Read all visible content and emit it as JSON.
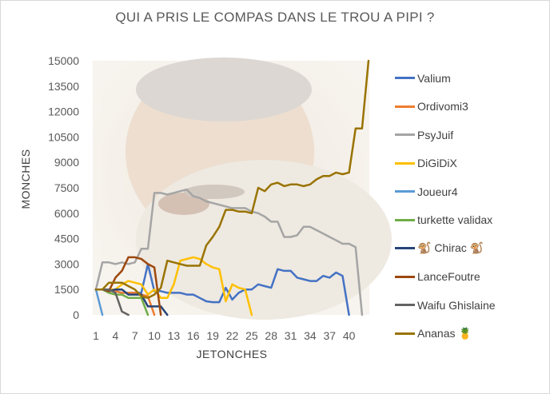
{
  "chart_data": {
    "type": "line",
    "title": "QUI A PRIS LE COMPAS DANS LE TROU A PIPI ?",
    "xlabel": "JETONCHES",
    "ylabel": "MONCHES",
    "ylim": [
      0,
      15000
    ],
    "yticks": [
      "0",
      "1500",
      "3000",
      "4500",
      "6000",
      "7500",
      "9000",
      "10500",
      "12000",
      "13500",
      "15000"
    ],
    "xlim": [
      1,
      43
    ],
    "xticks": [
      "1",
      "4",
      "7",
      "10",
      "13",
      "16",
      "19",
      "22",
      "25",
      "28",
      "31",
      "34",
      "37",
      "40"
    ],
    "grid": false,
    "legend_position": "right",
    "series": [
      {
        "name": "Valium",
        "color": "#4472c4",
        "x": [
          1,
          2,
          3,
          4,
          5,
          6,
          7,
          8,
          9,
          10,
          11,
          12,
          13,
          14,
          15,
          16,
          17,
          18,
          19,
          20,
          21,
          22,
          23,
          24,
          25,
          26,
          27,
          28,
          29,
          30,
          31,
          32,
          33,
          34,
          35,
          36,
          37,
          38,
          39,
          40
        ],
        "y": [
          1500,
          1500,
          1500,
          1400,
          1300,
          1300,
          1300,
          1300,
          3000,
          1400,
          1400,
          1300,
          1300,
          1300,
          1200,
          1200,
          1000,
          800,
          750,
          750,
          1600,
          900,
          1300,
          1500,
          1500,
          1800,
          1700,
          1600,
          2700,
          2600,
          2600,
          2200,
          2100,
          2000,
          2000,
          2300,
          2200,
          2500,
          2300,
          0
        ]
      },
      {
        "name": "Ordivomi3",
        "color": "#ed7d31",
        "x": [
          1,
          2,
          3,
          4,
          5,
          6,
          7,
          8,
          9,
          10
        ],
        "y": [
          1500,
          1500,
          1400,
          1400,
          1300,
          1300,
          1300,
          1200,
          1100,
          0
        ]
      },
      {
        "name": "PsyJuif",
        "color": "#a5a5a5",
        "x": [
          1,
          2,
          3,
          4,
          5,
          6,
          7,
          8,
          9,
          10,
          11,
          12,
          13,
          14,
          15,
          16,
          17,
          18,
          19,
          20,
          21,
          22,
          23,
          24,
          25,
          26,
          27,
          28,
          29,
          30,
          31,
          32,
          33,
          34,
          35,
          36,
          37,
          38,
          39,
          40,
          41,
          42
        ],
        "y": [
          1500,
          3100,
          3100,
          3000,
          3100,
          3000,
          3100,
          3900,
          3900,
          7200,
          7200,
          7100,
          7200,
          7300,
          7400,
          7000,
          6900,
          6700,
          6600,
          6500,
          6400,
          6300,
          6300,
          6300,
          6100,
          6000,
          5800,
          5500,
          5500,
          4600,
          4600,
          4700,
          5200,
          5200,
          5000,
          4800,
          4600,
          4400,
          4200,
          4200,
          4000,
          0
        ]
      },
      {
        "name": "DiGiDiX",
        "color": "#ffc000",
        "x": [
          1,
          2,
          3,
          4,
          5,
          6,
          7,
          8,
          9,
          10,
          11,
          12,
          13,
          14,
          15,
          16,
          17,
          18,
          19,
          20,
          21,
          22,
          23,
          24,
          25
        ],
        "y": [
          1500,
          1500,
          1500,
          1500,
          1800,
          2000,
          1900,
          1800,
          1200,
          1500,
          1000,
          1000,
          1800,
          3200,
          3300,
          3400,
          3300,
          3000,
          2800,
          2700,
          800,
          1800,
          1600,
          1500,
          0
        ]
      },
      {
        "name": "Joueur4",
        "color": "#5b9bd5",
        "x": [
          1,
          2
        ],
        "y": [
          1500,
          0
        ]
      },
      {
        "name": "turkette validax",
        "color": "#70ad47",
        "x": [
          1,
          2,
          3,
          4,
          5,
          6,
          7,
          8,
          9
        ],
        "y": [
          1500,
          1500,
          1300,
          1200,
          1200,
          1000,
          1000,
          1000,
          0
        ]
      },
      {
        "name": "🐒 Chirac 🐒",
        "color": "#264478",
        "x": [
          1,
          2,
          3,
          4,
          5,
          6,
          7,
          8,
          9,
          10,
          11,
          12
        ],
        "y": [
          1500,
          1500,
          1400,
          1500,
          1500,
          1200,
          1200,
          1200,
          500,
          500,
          500,
          0
        ]
      },
      {
        "name": "LanceFoutre",
        "color": "#9e480e",
        "x": [
          1,
          2,
          3,
          4,
          5,
          6,
          7,
          8,
          9,
          10,
          11
        ],
        "y": [
          1500,
          1500,
          1400,
          2200,
          2600,
          3400,
          3400,
          3300,
          3000,
          2800,
          0
        ]
      },
      {
        "name": "Waifu Ghislaine",
        "color": "#636363",
        "x": [
          1,
          2,
          3,
          4,
          5,
          6
        ],
        "y": [
          1500,
          1500,
          1500,
          1300,
          200,
          0
        ]
      },
      {
        "name": "Ananas 🍍",
        "color": "#997300",
        "x": [
          1,
          2,
          3,
          4,
          5,
          6,
          7,
          8,
          9,
          10,
          11,
          12,
          13,
          14,
          15,
          16,
          17,
          18,
          19,
          20,
          21,
          22,
          23,
          24,
          25,
          26,
          27,
          28,
          29,
          30,
          31,
          32,
          33,
          34,
          35,
          36,
          37,
          38,
          39,
          40,
          41,
          42,
          43
        ],
        "y": [
          1500,
          1500,
          1900,
          1900,
          1900,
          1700,
          1500,
          1100,
          1000,
          1200,
          1600,
          3200,
          3100,
          3000,
          2900,
          2900,
          2900,
          4100,
          4600,
          5200,
          6200,
          6200,
          6100,
          6100,
          6000,
          7500,
          7300,
          7700,
          7800,
          7600,
          7700,
          7700,
          7600,
          7700,
          8000,
          8200,
          8200,
          8400,
          8300,
          8400,
          11000,
          11000,
          15000
        ]
      }
    ]
  }
}
